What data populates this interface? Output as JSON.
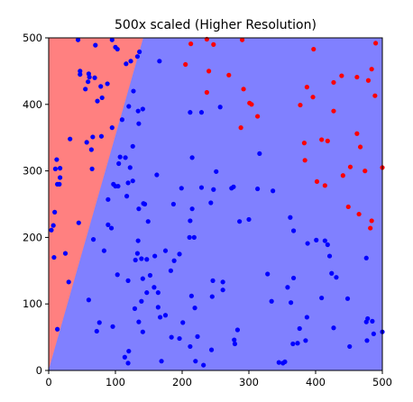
{
  "chart_data": {
    "type": "scatter",
    "title": "500x scaled (Higher Resolution)",
    "xlabel": "",
    "ylabel": "",
    "xlim": [
      0,
      500
    ],
    "ylim": [
      0,
      500
    ],
    "xticks": [
      0,
      100,
      200,
      300,
      400,
      500
    ],
    "yticks": [
      0,
      100,
      200,
      300,
      400,
      500
    ],
    "grid": false,
    "colors": {
      "background": "#ffffff",
      "region_red": "#ff8080",
      "region_blue": "#8080ff",
      "point_red": "#ff0000",
      "point_blue": "#0000ff"
    },
    "regions": [
      {
        "label": "red",
        "polygon": [
          [
            0,
            0
          ],
          [
            0,
            500
          ],
          [
            142,
            500
          ]
        ]
      },
      {
        "label": "blue",
        "polygon": [
          [
            0,
            0
          ],
          [
            142,
            500
          ],
          [
            500,
            500
          ],
          [
            500,
            0
          ]
        ]
      }
    ],
    "series": [
      {
        "color": "red",
        "points": [
          [
            213,
            491
          ],
          [
            237,
            498
          ],
          [
            247,
            490
          ],
          [
            290,
            497
          ],
          [
            490,
            492
          ],
          [
            205,
            460
          ],
          [
            240,
            450
          ],
          [
            270,
            444
          ],
          [
            237,
            418
          ],
          [
            292,
            423
          ],
          [
            301,
            402
          ],
          [
            304,
            400
          ],
          [
            313,
            382
          ],
          [
            288,
            365
          ],
          [
            377,
            399
          ],
          [
            397,
            483
          ],
          [
            387,
            426
          ],
          [
            396,
            411
          ],
          [
            427,
            433
          ],
          [
            439,
            443
          ],
          [
            427,
            390
          ],
          [
            462,
            441
          ],
          [
            479,
            436
          ],
          [
            484,
            453
          ],
          [
            489,
            413
          ],
          [
            409,
            347
          ],
          [
            418,
            345
          ],
          [
            383,
            342
          ],
          [
            384,
            316
          ],
          [
            402,
            284
          ],
          [
            414,
            278
          ],
          [
            462,
            356
          ],
          [
            467,
            336
          ],
          [
            474,
            300
          ],
          [
            452,
            306
          ],
          [
            441,
            293
          ],
          [
            500,
            305
          ],
          [
            449,
            246
          ],
          [
            465,
            235
          ],
          [
            484,
            225
          ],
          [
            482,
            214
          ]
        ]
      },
      {
        "color": "blue",
        "points": [
          [
            44,
            497
          ],
          [
            70,
            489
          ],
          [
            95,
            497
          ],
          [
            100,
            486
          ],
          [
            103,
            483
          ],
          [
            116,
            461
          ],
          [
            123,
            465
          ],
          [
            133,
            472
          ],
          [
            136,
            479
          ],
          [
            166,
            465
          ],
          [
            47,
            450
          ],
          [
            47,
            445
          ],
          [
            60,
            446
          ],
          [
            61,
            441
          ],
          [
            69,
            440
          ],
          [
            78,
            427
          ],
          [
            88,
            431
          ],
          [
            80,
            410
          ],
          [
            73,
            405
          ],
          [
            55,
            423
          ],
          [
            59,
            434
          ],
          [
            10,
            303
          ],
          [
            12,
            317
          ],
          [
            17,
            304
          ],
          [
            32,
            348
          ],
          [
            57,
            343
          ],
          [
            66,
            351
          ],
          [
            79,
            352
          ],
          [
            64,
            332
          ],
          [
            65,
            303
          ],
          [
            17,
            290
          ],
          [
            13,
            280
          ],
          [
            16,
            280
          ],
          [
            95,
            365
          ],
          [
            107,
            321
          ],
          [
            126,
            337
          ],
          [
            110,
            377
          ],
          [
            120,
            397
          ],
          [
            135,
            371
          ],
          [
            141,
            393
          ],
          [
            134,
            390
          ],
          [
            127,
            420
          ],
          [
            212,
            388
          ],
          [
            229,
            388
          ],
          [
            257,
            396
          ],
          [
            215,
            320
          ],
          [
            162,
            294
          ],
          [
            122,
            305
          ],
          [
            115,
            320
          ],
          [
            105,
            311
          ],
          [
            126,
            285
          ],
          [
            119,
            282
          ],
          [
            97,
            280
          ],
          [
            104,
            277
          ],
          [
            100,
            277
          ],
          [
            89,
            257
          ],
          [
            117,
            262
          ],
          [
            142,
            251
          ],
          [
            135,
            243
          ],
          [
            144,
            250
          ],
          [
            149,
            224
          ],
          [
            134,
            195
          ],
          [
            133,
            176
          ],
          [
            187,
            250
          ],
          [
            199,
            274
          ],
          [
            229,
            275
          ],
          [
            247,
            272
          ],
          [
            251,
            299
          ],
          [
            243,
            252
          ],
          [
            274,
            274
          ],
          [
            277,
            276
          ],
          [
            286,
            224
          ],
          [
            300,
            227
          ],
          [
            316,
            326
          ],
          [
            313,
            273
          ],
          [
            336,
            270
          ],
          [
            362,
            230
          ],
          [
            367,
            210
          ],
          [
            388,
            191
          ],
          [
            401,
            196
          ],
          [
            414,
            195
          ],
          [
            418,
            189
          ],
          [
            421,
            172
          ],
          [
            424,
            146
          ],
          [
            431,
            140
          ],
          [
            448,
            108
          ],
          [
            476,
            169
          ],
          [
            476,
            73
          ],
          [
            478,
            78
          ],
          [
            485,
            74
          ],
          [
            487,
            55
          ],
          [
            477,
            45
          ],
          [
            451,
            36
          ],
          [
            427,
            64
          ],
          [
            409,
            109
          ],
          [
            387,
            80
          ],
          [
            385,
            45
          ],
          [
            376,
            63
          ],
          [
            373,
            41
          ],
          [
            366,
            40
          ],
          [
            363,
            102
          ],
          [
            358,
            125
          ],
          [
            367,
            139
          ],
          [
            334,
            104
          ],
          [
            328,
            145
          ],
          [
            354,
            13
          ],
          [
            351,
            11
          ],
          [
            345,
            12
          ],
          [
            283,
            61
          ],
          [
            279,
            40
          ],
          [
            278,
            46
          ],
          [
            244,
            31
          ],
          [
            232,
            8
          ],
          [
            220,
            14
          ],
          [
            223,
            51
          ],
          [
            212,
            36
          ],
          [
            201,
            72
          ],
          [
            219,
            94
          ],
          [
            214,
            112
          ],
          [
            245,
            111
          ],
          [
            246,
            135
          ],
          [
            261,
            121
          ],
          [
            261,
            133
          ],
          [
            218,
            200
          ],
          [
            211,
            200
          ],
          [
            212,
            225
          ],
          [
            215,
            243
          ],
          [
            196,
            175
          ],
          [
            183,
            150
          ],
          [
            188,
            165
          ],
          [
            175,
            180
          ],
          [
            159,
            172
          ],
          [
            147,
            167
          ],
          [
            139,
            168
          ],
          [
            141,
            138
          ],
          [
            152,
            143
          ],
          [
            158,
            125
          ],
          [
            164,
            117
          ],
          [
            147,
            117
          ],
          [
            139,
            104
          ],
          [
            129,
            93
          ],
          [
            119,
            135
          ],
          [
            130,
            166
          ],
          [
            103,
            144
          ],
          [
            83,
            180
          ],
          [
            67,
            197
          ],
          [
            89,
            219
          ],
          [
            94,
            214
          ],
          [
            45,
            222
          ],
          [
            9,
            238
          ],
          [
            7,
            218
          ],
          [
            4,
            211
          ],
          [
            25,
            176
          ],
          [
            30,
            133
          ],
          [
            8,
            170
          ],
          [
            13,
            62
          ],
          [
            60,
            106
          ],
          [
            76,
            72
          ],
          [
            72,
            59
          ],
          [
            96,
            66
          ],
          [
            135,
            73
          ],
          [
            141,
            58
          ],
          [
            167,
            80
          ],
          [
            164,
            95
          ],
          [
            175,
            83
          ],
          [
            169,
            14
          ],
          [
            184,
            50
          ],
          [
            196,
            48
          ],
          [
            119,
            11
          ],
          [
            114,
            20
          ],
          [
            120,
            29
          ],
          [
            500,
            58
          ]
        ]
      }
    ]
  }
}
